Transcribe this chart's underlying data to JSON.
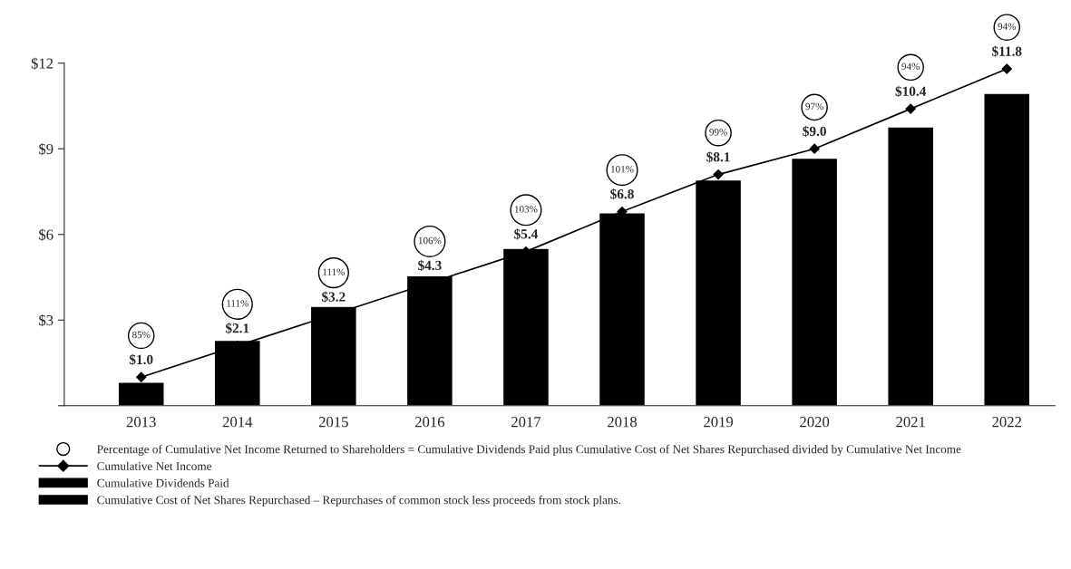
{
  "chart_data": {
    "type": "bar",
    "categories": [
      "2013",
      "2014",
      "2015",
      "2016",
      "2017",
      "2018",
      "2019",
      "2020",
      "2021",
      "2022"
    ],
    "series": [
      {
        "color": "#000000",
        "values": [
          0.82,
          2.29,
          3.48,
          4.55,
          5.51,
          6.76,
          7.91,
          8.67,
          9.77,
          10.94
        ]
      },
      {
        "type": "line",
        "name": "Cumulative Net Income",
        "color": "#000000",
        "values": [
          1.0,
          2.1,
          3.2,
          4.3,
          5.4,
          6.8,
          8.1,
          9.0,
          10.4,
          11.8
        ],
        "value_labels": [
          "$1.0",
          "$2.1",
          "$3.2",
          "$4.3",
          "$5.4",
          "$6.8",
          "$8.1",
          "$9.0",
          "$10.4",
          "$11.8"
        ],
        "marker": "diamond"
      }
    ],
    "ylim": [
      0,
      12
    ],
    "yticks": [
      {
        "value": 0,
        "label": null
      },
      {
        "value": 3,
        "label": "$3"
      },
      {
        "value": 6,
        "label": "$6"
      },
      {
        "value": 9,
        "label": "$9"
      },
      {
        "value": 12,
        "label": "$12"
      }
    ],
    "legend": "bottom",
    "annotations": [
      "85%",
      "111%",
      "111%",
      "106%",
      "103%",
      "101%",
      "99%",
      "97%",
      "94%",
      "94%",
      "Percentage of Cumulative Net Income Returned to Shareholders = Cumulative Dividends Paid plus Cumulative Cost of Net Shares Repurchased divided by Cumulative Net Income",
      "Cumulative Dividends Paid",
      "Cumulative Cost of Net Shares Repurchased – Repurchases of common stock less proceeds from stock plans."
    ]
  }
}
